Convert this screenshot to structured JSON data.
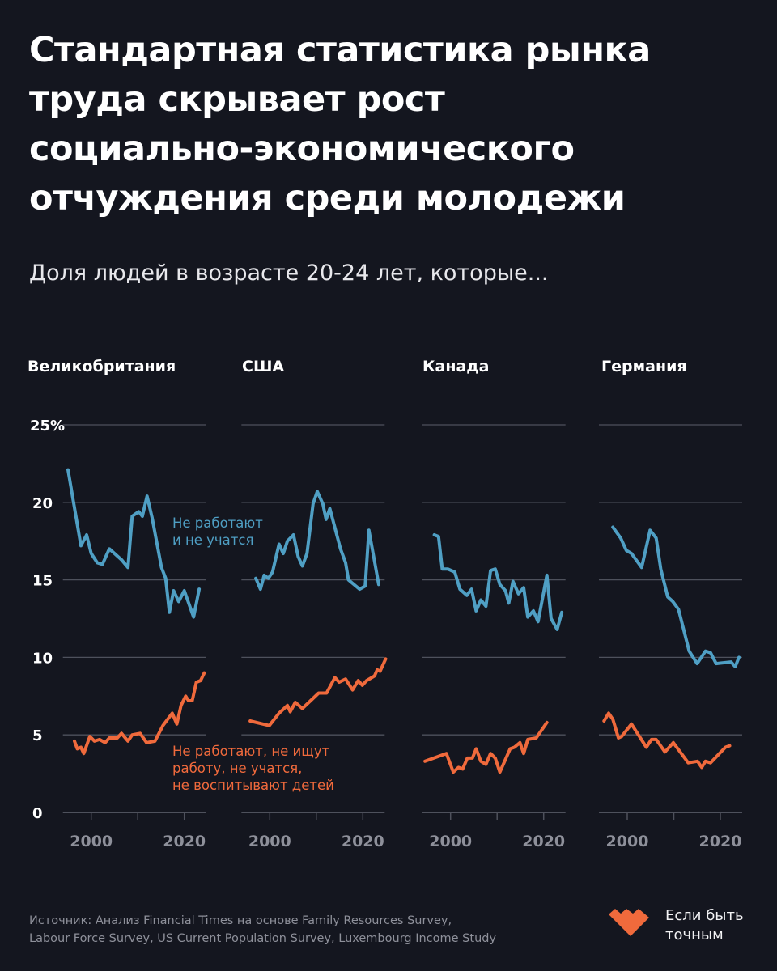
{
  "title_lines": [
    "Стандартная статистика рынка",
    "труда скрывает рост",
    "социально-экономического",
    "отчуждения среди молодежи"
  ],
  "subtitle": "Доля людей в возрасте 20-24 лет, которые...",
  "annotations": {
    "blue": [
      "Не работают",
      "и не учатся"
    ],
    "orange": [
      "Не работают, не ищут",
      "работу, не учатся,",
      "не воспитывают детей"
    ]
  },
  "source_lines": [
    "Источник: Анализ Financial Times на основе Family Resources Survey,",
    "Labour Force Survey, US Current Population Survey, Luxembourg Income Study"
  ],
  "brand": {
    "line1": "Если быть",
    "line2": "точным",
    "logo_icon": "orange-heart-logo"
  },
  "colors": {
    "background": "#14161f",
    "blue": "#4f9fc4",
    "orange": "#f06a3c",
    "grid": "#4e515c",
    "tick_label": "#8e909a"
  },
  "chart_data": {
    "type": "line",
    "layout": "small-multiples",
    "ylim": [
      0,
      25
    ],
    "yticks": [
      0,
      5,
      10,
      15,
      20,
      25
    ],
    "ytick_labels": [
      "0",
      "5",
      "10",
      "15",
      "20",
      "25%"
    ],
    "xticks": [
      2000,
      2010,
      2020
    ],
    "xtick_labels": [
      "2000",
      "2020"
    ],
    "grid": true,
    "series_names": [
      "Не работают и не учатся",
      "Не работают, не ищут работу, не учатся, не воспитывают детей"
    ],
    "panels": [
      {
        "title": "Великобритания",
        "blue": [
          [
            1995,
            22.1
          ],
          [
            1997.8,
            17.2
          ],
          [
            1999,
            17.9
          ],
          [
            2000,
            16.7
          ],
          [
            2001.3,
            16.1
          ],
          [
            2002.4,
            16.0
          ],
          [
            2003.9,
            17.0
          ],
          [
            2006.5,
            16.3
          ],
          [
            2007.9,
            15.8
          ],
          [
            2008.8,
            19.1
          ],
          [
            2010.2,
            19.4
          ],
          [
            2011,
            19.1
          ],
          [
            2012,
            20.4
          ],
          [
            2013.1,
            19.0
          ],
          [
            2015.1,
            15.8
          ],
          [
            2016,
            15.1
          ],
          [
            2016.8,
            12.9
          ],
          [
            2017.7,
            14.3
          ],
          [
            2018.8,
            13.6
          ],
          [
            2020,
            14.3
          ],
          [
            2022,
            12.6
          ],
          [
            2023.2,
            14.4
          ]
        ],
        "orange": [
          [
            1996.4,
            4.6
          ],
          [
            1997,
            4.1
          ],
          [
            1997.8,
            4.2
          ],
          [
            1998.4,
            3.8
          ],
          [
            1999.7,
            4.9
          ],
          [
            2000.7,
            4.6
          ],
          [
            2001.8,
            4.7
          ],
          [
            2003,
            4.5
          ],
          [
            2003.9,
            4.8
          ],
          [
            2005.6,
            4.8
          ],
          [
            2006.5,
            5.1
          ],
          [
            2007.9,
            4.6
          ],
          [
            2008.8,
            5.0
          ],
          [
            2010.5,
            5.1
          ],
          [
            2011.9,
            4.5
          ],
          [
            2013.7,
            4.6
          ],
          [
            2015.4,
            5.6
          ],
          [
            2017.4,
            6.4
          ],
          [
            2018.4,
            5.7
          ],
          [
            2019.3,
            6.9
          ],
          [
            2020.3,
            7.5
          ],
          [
            2020.9,
            7.2
          ],
          [
            2021.7,
            7.2
          ],
          [
            2022.6,
            8.4
          ],
          [
            2023.5,
            8.5
          ],
          [
            2024.3,
            9.0
          ]
        ]
      },
      {
        "title": "США",
        "blue": [
          [
            1997,
            15.1
          ],
          [
            1998,
            14.4
          ],
          [
            1998.8,
            15.3
          ],
          [
            1999.7,
            15.1
          ],
          [
            2000.6,
            15.5
          ],
          [
            2002,
            17.3
          ],
          [
            2002.9,
            16.7
          ],
          [
            2003.8,
            17.5
          ],
          [
            2005.1,
            17.9
          ],
          [
            2006.1,
            16.5
          ],
          [
            2007,
            15.9
          ],
          [
            2008,
            16.7
          ],
          [
            2009.3,
            19.9
          ],
          [
            2010.2,
            20.7
          ],
          [
            2011.4,
            19.9
          ],
          [
            2012.1,
            18.9
          ],
          [
            2012.9,
            19.6
          ],
          [
            2015.2,
            17.0
          ],
          [
            2016.3,
            16.1
          ],
          [
            2016.9,
            15.0
          ],
          [
            2019.3,
            14.4
          ],
          [
            2020.5,
            14.6
          ],
          [
            2021.3,
            18.2
          ],
          [
            2023.4,
            14.7
          ]
        ],
        "orange": [
          [
            1995.8,
            5.9
          ],
          [
            1999.9,
            5.6
          ],
          [
            2002,
            6.4
          ],
          [
            2003.8,
            6.9
          ],
          [
            2004.4,
            6.5
          ],
          [
            2005.5,
            7.1
          ],
          [
            2007,
            6.7
          ],
          [
            2010.5,
            7.7
          ],
          [
            2012.2,
            7.7
          ],
          [
            2014,
            8.7
          ],
          [
            2014.9,
            8.4
          ],
          [
            2016.3,
            8.6
          ],
          [
            2017.8,
            7.9
          ],
          [
            2019,
            8.5
          ],
          [
            2019.9,
            8.2
          ],
          [
            2020.8,
            8.5
          ],
          [
            2022.5,
            8.8
          ],
          [
            2023.1,
            9.2
          ],
          [
            2023.7,
            9.1
          ],
          [
            2024.9,
            9.9
          ]
        ]
      },
      {
        "title": "Канада",
        "blue": [
          [
            1996.5,
            17.9
          ],
          [
            1997.4,
            17.8
          ],
          [
            1998.2,
            15.7
          ],
          [
            1999.4,
            15.7
          ],
          [
            2000.9,
            15.5
          ],
          [
            2002,
            14.4
          ],
          [
            2003.5,
            14.0
          ],
          [
            2004.5,
            14.4
          ],
          [
            2005.5,
            13.0
          ],
          [
            2006.5,
            13.7
          ],
          [
            2007.6,
            13.3
          ],
          [
            2008.6,
            15.6
          ],
          [
            2009.6,
            15.7
          ],
          [
            2010.6,
            14.7
          ],
          [
            2011.8,
            14.3
          ],
          [
            2012.5,
            13.5
          ],
          [
            2013.4,
            14.9
          ],
          [
            2014.6,
            14.1
          ],
          [
            2015.7,
            14.5
          ],
          [
            2016.6,
            12.6
          ],
          [
            2017.8,
            13.0
          ],
          [
            2018.8,
            12.3
          ],
          [
            2020.7,
            15.3
          ],
          [
            2021.6,
            12.5
          ],
          [
            2022.9,
            11.8
          ],
          [
            2023.9,
            12.9
          ]
        ],
        "orange": [
          [
            1994.5,
            3.3
          ],
          [
            1999.1,
            3.8
          ],
          [
            2000.6,
            2.6
          ],
          [
            2001.7,
            2.9
          ],
          [
            2002.6,
            2.8
          ],
          [
            2003.6,
            3.5
          ],
          [
            2004.7,
            3.5
          ],
          [
            2005.5,
            4.1
          ],
          [
            2006.5,
            3.3
          ],
          [
            2007.6,
            3.1
          ],
          [
            2008.6,
            3.8
          ],
          [
            2009.6,
            3.5
          ],
          [
            2010.6,
            2.6
          ],
          [
            2012.8,
            4.1
          ],
          [
            2013.7,
            4.2
          ],
          [
            2014.9,
            4.5
          ],
          [
            2015.7,
            3.8
          ],
          [
            2016.6,
            4.7
          ],
          [
            2018.4,
            4.8
          ],
          [
            2020.7,
            5.8
          ]
        ]
      },
      {
        "title": "Германия",
        "blue": [
          [
            1996.9,
            18.4
          ],
          [
            1998.6,
            17.7
          ],
          [
            1999.8,
            16.9
          ],
          [
            2000.9,
            16.7
          ],
          [
            2003.1,
            15.8
          ],
          [
            2004.9,
            18.2
          ],
          [
            2006.2,
            17.7
          ],
          [
            2007.2,
            15.7
          ],
          [
            2008.7,
            13.9
          ],
          [
            2009.8,
            13.6
          ],
          [
            2011,
            13.1
          ],
          [
            2013.3,
            10.4
          ],
          [
            2015,
            9.6
          ],
          [
            2016.8,
            10.4
          ],
          [
            2017.9,
            10.3
          ],
          [
            2019.1,
            9.6
          ],
          [
            2022.3,
            9.7
          ],
          [
            2023.2,
            9.4
          ],
          [
            2024,
            10.0
          ]
        ],
        "orange": [
          [
            1995,
            5.9
          ],
          [
            1996,
            6.4
          ],
          [
            1996.9,
            6.0
          ],
          [
            1998.1,
            4.8
          ],
          [
            1998.8,
            4.9
          ],
          [
            2000.9,
            5.7
          ],
          [
            2004.1,
            4.2
          ],
          [
            2005.2,
            4.7
          ],
          [
            2006.2,
            4.7
          ],
          [
            2008.1,
            3.9
          ],
          [
            2009.9,
            4.5
          ],
          [
            2013.1,
            3.2
          ],
          [
            2015.1,
            3.3
          ],
          [
            2016,
            2.9
          ],
          [
            2016.8,
            3.3
          ],
          [
            2017.9,
            3.2
          ],
          [
            2021.1,
            4.2
          ],
          [
            2022,
            4.3
          ]
        ]
      }
    ]
  }
}
